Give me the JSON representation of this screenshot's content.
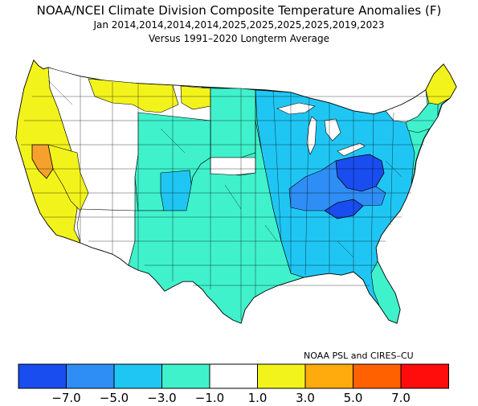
{
  "title": {
    "line1": "NOAA/NCEI Climate Division Composite Temperature Anomalies (F)",
    "line2": "Jan  2014,2014,2014,2014,2025,2025,2025,2025,2019,2023",
    "line3": "Versus 1991–2020 Longterm Average"
  },
  "credit": "NOAA PSL and CIRES–CU",
  "legend": {
    "colors": [
      "#1a4df0",
      "#2f8ef5",
      "#20c6f3",
      "#3ff2cc",
      "#ffffff",
      "#f3f31c",
      "#ffaa0d",
      "#ff6000",
      "#ff0c0c"
    ],
    "ticks": [
      "−7.0",
      "−5.0",
      "−3.0",
      "−1.0",
      "1.0",
      "3.0",
      "5.0",
      "7.0"
    ]
  },
  "map": {
    "colors": {
      "orange": "#f5a12b",
      "yellow": "#f3f31c",
      "white": "#ffffff",
      "teal": "#3ff2cc",
      "cyan": "#20c6f3",
      "sky": "#2f8ef5",
      "blue": "#1a4df0"
    }
  }
}
